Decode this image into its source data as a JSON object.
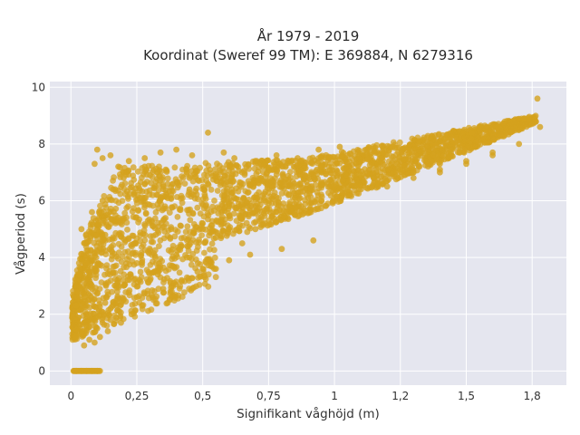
{
  "chart_data": {
    "type": "scatter",
    "title": "År 1979 - 2019",
    "subtitle": "Koordinat (Sweref 99 TM): E 369884, N 6279316",
    "xlabel": "Signifikant våghöjd (m)",
    "ylabel": "Vågperiod (s)",
    "xlim": [
      -0.08,
      1.88
    ],
    "ylim": [
      -0.5,
      10.2
    ],
    "x_ticks": [
      0,
      0.25,
      0.5,
      0.75,
      1,
      1.25,
      1.5,
      1.75
    ],
    "x_tick_labels": [
      "0",
      "0,25",
      "0,5",
      "0,75",
      "1",
      "1,2",
      "1,5",
      "1,8"
    ],
    "y_ticks": [
      0,
      2,
      4,
      6,
      8,
      10
    ],
    "y_tick_labels": [
      "0",
      "2",
      "4",
      "6",
      "8",
      "10"
    ],
    "grid": true,
    "legend": "none",
    "marker_color": "#d4a21e",
    "background_color": "#e5e6ef",
    "series": [
      {
        "x": [
          0.02,
          0.04,
          0.06,
          0.08,
          0.1,
          0.02,
          0.05,
          0.08,
          0.03,
          0.06,
          0.1,
          0.13,
          0.05,
          0.09,
          0.13,
          0.17,
          0.04,
          0.08,
          0.12,
          0.16,
          0.2,
          0.1,
          0.15,
          0.2,
          0.25,
          0.12,
          0.18,
          0.24,
          0.3,
          0.15,
          0.2,
          0.26,
          0.32,
          0.38,
          0.2,
          0.28,
          0.36,
          0.44,
          0.25,
          0.33,
          0.41,
          0.5,
          0.3,
          0.4,
          0.5,
          0.6,
          0.35,
          0.45,
          0.55,
          0.65,
          0.75,
          0.45,
          0.55,
          0.65,
          0.75,
          0.85,
          0.55,
          0.65,
          0.75,
          0.85,
          0.95,
          0.7,
          0.8,
          0.9,
          1.0,
          1.1,
          0.85,
          0.95,
          1.05,
          1.15,
          1.25,
          1.0,
          1.1,
          1.2,
          1.3,
          1.4,
          1.2,
          1.3,
          1.4,
          1.5,
          1.6,
          1.4,
          1.5,
          1.6,
          1.7,
          1.78,
          0.1,
          0.12,
          0.09,
          0.15,
          0.18,
          0.22,
          0.28,
          0.34,
          0.4,
          0.46,
          0.52,
          0.58,
          0.62,
          0.7,
          0.78,
          0.86,
          0.94,
          1.02,
          1.12,
          1.22,
          1.32,
          1.42,
          1.52,
          1.62,
          1.72,
          1.77,
          0.05,
          0.07,
          0.09,
          0.11,
          0.14,
          0.19,
          0.23,
          0.27,
          0.31,
          0.35,
          0.42,
          0.48,
          0.53,
          0.6,
          0.68,
          0.8,
          0.92,
          0.38,
          0.45,
          0.52,
          0.61,
          0.72,
          0.02,
          0.04,
          0.06,
          0.08,
          0.1,
          0.11
        ],
        "y": [
          1.2,
          1.3,
          1.5,
          1.7,
          1.9,
          2.3,
          2.6,
          3.0,
          3.4,
          3.8,
          4.2,
          4.8,
          1.3,
          1.8,
          2.4,
          3.0,
          5.0,
          5.6,
          6.0,
          6.4,
          6.8,
          1.5,
          2.2,
          3.0,
          3.8,
          4.6,
          5.4,
          6.2,
          6.9,
          1.8,
          2.5,
          3.2,
          4.0,
          5.0,
          7.0,
          7.2,
          7.1,
          7.0,
          2.6,
          3.4,
          4.3,
          5.2,
          3.2,
          4.1,
          5.0,
          5.8,
          6.5,
          6.8,
          6.9,
          7.0,
          7.1,
          4.0,
          4.7,
          5.4,
          6.0,
          6.5,
          3.6,
          4.5,
          5.3,
          6.1,
          6.6,
          5.0,
          5.6,
          6.1,
          6.5,
          6.9,
          5.5,
          6.0,
          6.4,
          6.8,
          7.1,
          6.0,
          6.4,
          6.7,
          7.0,
          7.3,
          6.5,
          6.8,
          7.1,
          7.4,
          7.7,
          7.0,
          7.3,
          7.6,
          8.0,
          8.6,
          7.8,
          7.5,
          7.3,
          7.6,
          7.2,
          7.4,
          7.5,
          7.7,
          7.8,
          7.6,
          8.4,
          7.7,
          7.5,
          7.4,
          7.6,
          7.5,
          7.8,
          7.9,
          7.8,
          7.9,
          8.1,
          8.2,
          8.4,
          8.6,
          8.9,
          9.6,
          0.9,
          1.1,
          1.0,
          1.2,
          1.4,
          1.7,
          2.0,
          2.3,
          2.6,
          2.9,
          3.2,
          3.5,
          3.7,
          3.9,
          4.1,
          4.3,
          4.6,
          6.2,
          6.4,
          6.6,
          6.8,
          6.8,
          0.0,
          0.0,
          0.0,
          0.0,
          0.0,
          0.0
        ]
      }
    ]
  }
}
